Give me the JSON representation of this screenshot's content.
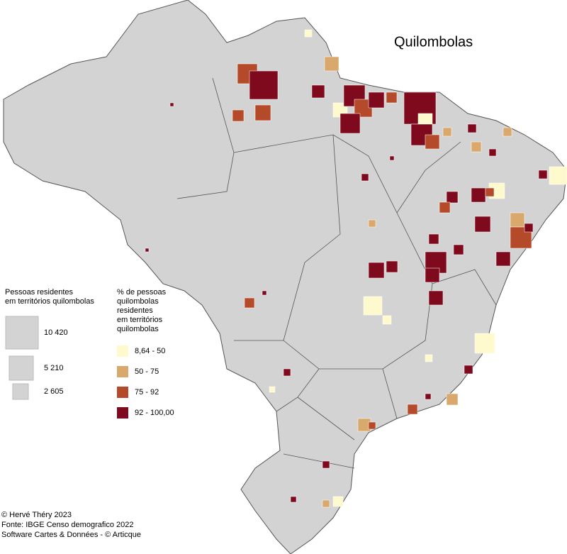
{
  "title": "Quilombolas",
  "size_legend": {
    "title": [
      "Pessoas residentes",
      "em territórios quilombolas"
    ],
    "items": [
      "10 420",
      "5 210",
      "2 605"
    ]
  },
  "color_legend": {
    "title": [
      "% de pessoas",
      "quilombolas",
      "residentes",
      "em territórios",
      "quilombolas"
    ],
    "classes": [
      {
        "label": "8,64 - 50",
        "color": "#fffacd"
      },
      {
        "label": "50 - 75",
        "color": "#d9a86c"
      },
      {
        "label": "75 - 92",
        "color": "#b54a2a"
      },
      {
        "label": "92  - 100,00",
        "color": "#7f0a1e"
      }
    ]
  },
  "credits": [
    "© Hervé Théry 2023",
    "Fonte: IBGE Censo demografico 2022",
    "Software Cartes & Données - © Articque"
  ]
}
